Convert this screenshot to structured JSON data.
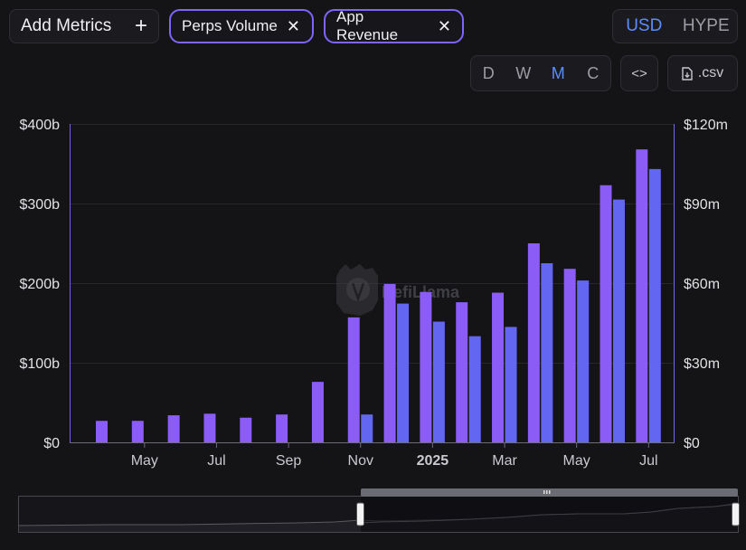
{
  "toolbar": {
    "add_metrics_label": "Add Metrics",
    "chips": [
      {
        "label": "Perps Volume"
      },
      {
        "label": "App Revenue"
      }
    ],
    "currency": {
      "options": [
        "USD",
        "HYPE"
      ],
      "selected": "USD"
    },
    "periods": {
      "options": [
        "D",
        "W",
        "M",
        "C"
      ],
      "selected": "M"
    },
    "embed_label": "<>",
    "csv_label": ".csv"
  },
  "watermark": "DefiLlama",
  "colors": {
    "perps": "#8b5cf6",
    "revenue": "#6366f1",
    "active": "#5b8dff"
  },
  "chart_data": {
    "type": "bar",
    "categories": [
      "Apr 2024",
      "May 2024",
      "Jun 2024",
      "Jul 2024",
      "Aug 2024",
      "Sep 2024",
      "Oct 2024",
      "Nov 2024",
      "Dec 2024",
      "Jan 2025",
      "Feb 2025",
      "Mar 2025",
      "Apr 2025",
      "May 2025",
      "Jun 2025",
      "Jul 2025",
      "Aug 2025"
    ],
    "x_tick_labels": [
      "May",
      "Jul",
      "Sep",
      "Nov",
      "2025",
      "Mar",
      "May",
      "Jul"
    ],
    "series": [
      {
        "name": "Perps Volume",
        "axis": "left",
        "values": [
          27,
          27,
          34,
          36,
          31,
          35,
          76,
          157,
          199,
          189,
          176,
          188,
          250,
          218,
          323,
          368,
          null
        ]
      },
      {
        "name": "App Revenue",
        "axis": "right",
        "values": [
          null,
          null,
          null,
          null,
          null,
          null,
          null,
          10.5,
          52.3,
          45.5,
          40,
          43.5,
          67.5,
          61,
          91.5,
          103,
          null
        ]
      }
    ],
    "y_left": {
      "min": 0,
      "max": 400,
      "ticks": [
        "$0",
        "$100b",
        "$200b",
        "$300b",
        "$400b"
      ]
    },
    "y_right": {
      "min": 0,
      "max": 120,
      "ticks": [
        "$0",
        "$30m",
        "$60m",
        "$90m",
        "$120m"
      ]
    },
    "grid": true
  }
}
